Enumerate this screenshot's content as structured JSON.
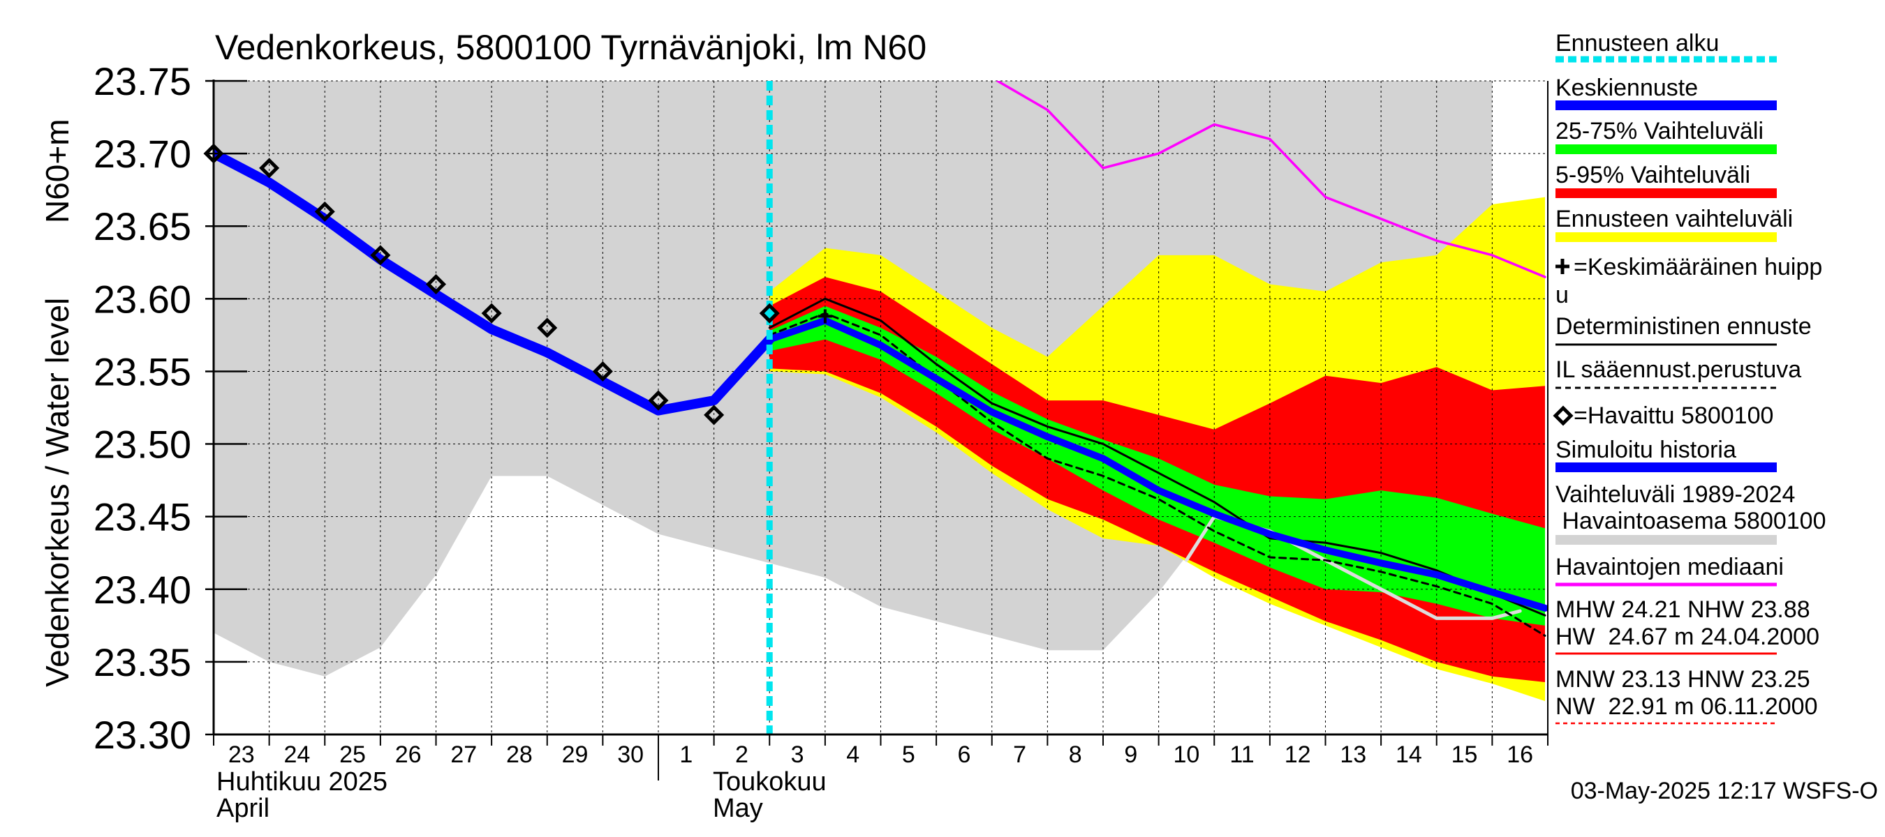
{
  "chart_data": {
    "type": "line",
    "title": "Vedenkorkeus, 5800100 Tyrnävänjoki, lm N60",
    "ylabel_top": "N60+m",
    "ylabel": "Vedenkorkeus / Water level",
    "ylim": [
      23.3,
      23.75
    ],
    "yticks": [
      "23.30",
      "23.35",
      "23.40",
      "23.45",
      "23.50",
      "23.55",
      "23.60",
      "23.65",
      "23.70",
      "23.75"
    ],
    "xlim": [
      "2025-04-23",
      "2025-05-16"
    ],
    "x_day_labels": [
      "23",
      "24",
      "25",
      "26",
      "27",
      "28",
      "29",
      "30",
      "1",
      "2",
      "3",
      "4",
      "5",
      "6",
      "7",
      "8",
      "9",
      "10",
      "11",
      "12",
      "13",
      "14",
      "15",
      "16"
    ],
    "month_labels": {
      "april": {
        "fi": "Huhtikuu  2025",
        "en": "April"
      },
      "may": {
        "fi": "Toukokuu",
        "en": "May"
      }
    },
    "grid": true,
    "legend_position": "right",
    "forecast_start": "2025-05-03",
    "series": {
      "history_range": {
        "name": "Vaihteluväli 1989-2024 Havaintoasema 5800100",
        "color": "#d3d3d3",
        "x": [
          "2025-04-23",
          "2025-04-24",
          "2025-04-25",
          "2025-04-26",
          "2025-04-27",
          "2025-04-28",
          "2025-04-29",
          "2025-04-30",
          "2025-05-01",
          "2025-05-02",
          "2025-05-03",
          "2025-05-04",
          "2025-05-05",
          "2025-05-06",
          "2025-05-07",
          "2025-05-08",
          "2025-05-09",
          "2025-05-10",
          "2025-05-11",
          "2025-05-12",
          "2025-05-13",
          "2025-05-14",
          "2025-05-15",
          "2025-05-16"
        ],
        "upper": [
          23.75,
          23.75,
          23.75,
          23.75,
          23.75,
          23.75,
          23.75,
          23.75,
          23.75,
          23.75,
          23.75,
          23.75,
          23.75,
          23.75,
          23.75,
          23.75,
          23.75,
          23.75,
          23.75,
          23.75,
          23.75,
          23.75,
          23.75,
          23.75
        ],
        "lower": [
          23.37,
          23.35,
          23.34,
          23.36,
          23.41,
          23.478,
          23.478,
          23.458,
          23.438,
          23.428,
          23.418,
          23.408,
          23.388,
          23.378,
          23.368,
          23.358,
          23.358,
          23.398,
          23.448,
          23.448,
          23.438,
          23.428,
          23.418,
          23.408
        ]
      },
      "forecast_range": {
        "name": "Ennusteen vaihteluväli",
        "color": "#ffff00",
        "x": [
          "2025-05-03",
          "2025-05-04",
          "2025-05-05",
          "2025-05-06",
          "2025-05-07",
          "2025-05-08",
          "2025-05-09",
          "2025-05-10",
          "2025-05-11",
          "2025-05-12",
          "2025-05-13",
          "2025-05-14",
          "2025-05-15",
          "2025-05-16",
          "2025-05-16.95"
        ],
        "upper": [
          23.605,
          23.635,
          23.63,
          23.605,
          23.58,
          23.56,
          23.595,
          23.63,
          23.63,
          23.61,
          23.605,
          23.625,
          23.63,
          23.665,
          23.67
        ],
        "lower": [
          23.55,
          23.548,
          23.532,
          23.508,
          23.48,
          23.455,
          23.435,
          23.43,
          23.408,
          23.39,
          23.375,
          23.36,
          23.345,
          23.335,
          23.323
        ]
      },
      "range_5_95": {
        "name": "5-95% Vaihteluväli",
        "color": "#ff0000",
        "x": [
          "2025-05-03",
          "2025-05-04",
          "2025-05-05",
          "2025-05-06",
          "2025-05-07",
          "2025-05-08",
          "2025-05-09",
          "2025-05-10",
          "2025-05-11",
          "2025-05-12",
          "2025-05-13",
          "2025-05-14",
          "2025-05-15",
          "2025-05-16",
          "2025-05-16.95"
        ],
        "upper": [
          23.595,
          23.615,
          23.605,
          23.58,
          23.555,
          23.53,
          23.53,
          23.52,
          23.51,
          23.528,
          23.547,
          23.542,
          23.553,
          23.537,
          23.54
        ],
        "lower": [
          23.552,
          23.55,
          23.535,
          23.512,
          23.485,
          23.462,
          23.448,
          23.43,
          23.412,
          23.395,
          23.378,
          23.365,
          23.35,
          23.34,
          23.336
        ]
      },
      "range_25_75": {
        "name": "25-75% Vaihteluväli",
        "color": "#00ff00",
        "x": [
          "2025-05-03",
          "2025-05-04",
          "2025-05-05",
          "2025-05-06",
          "2025-05-07",
          "2025-05-08",
          "2025-05-09",
          "2025-05-10",
          "2025-05-11",
          "2025-05-12",
          "2025-05-13",
          "2025-05-14",
          "2025-05-15",
          "2025-05-16",
          "2025-05-16.95"
        ],
        "upper": [
          23.578,
          23.595,
          23.58,
          23.56,
          23.536,
          23.517,
          23.503,
          23.49,
          23.472,
          23.464,
          23.462,
          23.468,
          23.463,
          23.452,
          23.442
        ],
        "lower": [
          23.564,
          23.572,
          23.558,
          23.535,
          23.51,
          23.49,
          23.468,
          23.448,
          23.432,
          23.415,
          23.4,
          23.398,
          23.39,
          23.38,
          23.375
        ]
      },
      "median_forecast": {
        "name": "Keskiennuste",
        "color": "#0000ff",
        "x": [
          "2025-05-03",
          "2025-05-04",
          "2025-05-05",
          "2025-05-06",
          "2025-05-07",
          "2025-05-08",
          "2025-05-09",
          "2025-05-10",
          "2025-05-11",
          "2025-05-12",
          "2025-05-13",
          "2025-05-14",
          "2025-05-15",
          "2025-05-16",
          "2025-05-16.95"
        ],
        "values": [
          23.572,
          23.585,
          23.568,
          23.545,
          23.522,
          23.505,
          23.49,
          23.468,
          23.452,
          23.438,
          23.427,
          23.418,
          23.41,
          23.398,
          23.387
        ]
      },
      "deterministic": {
        "name": "Deterministinen ennuste",
        "color": "#000000",
        "x": [
          "2025-05-03",
          "2025-05-04",
          "2025-05-05",
          "2025-05-06",
          "2025-05-07",
          "2025-05-08",
          "2025-05-09",
          "2025-05-10",
          "2025-05-11",
          "2025-05-12",
          "2025-05-13",
          "2025-05-14",
          "2025-05-15",
          "2025-05-16",
          "2025-05-16.95"
        ],
        "values": [
          23.58,
          23.6,
          23.585,
          23.555,
          23.528,
          23.512,
          23.5,
          23.48,
          23.46,
          23.435,
          23.432,
          23.425,
          23.413,
          23.397,
          23.382
        ]
      },
      "il_weather_forecast": {
        "name": "IL sääennust.perustuva",
        "color": "#000000",
        "dash": true,
        "x": [
          "2025-05-03",
          "2025-05-04",
          "2025-05-05",
          "2025-05-06",
          "2025-05-07",
          "2025-05-08",
          "2025-05-09",
          "2025-05-10",
          "2025-05-11",
          "2025-05-12",
          "2025-05-13",
          "2025-05-14",
          "2025-05-15",
          "2025-05-16",
          "2025-05-16.95"
        ],
        "values": [
          23.575,
          23.59,
          23.575,
          23.545,
          23.515,
          23.49,
          23.478,
          23.462,
          23.44,
          23.422,
          23.42,
          23.412,
          23.402,
          23.39,
          23.368
        ]
      },
      "simulated_history": {
        "name": "Simuloitu historia",
        "color": "#0000ff",
        "x": [
          "2025-04-23",
          "2025-04-24",
          "2025-04-25",
          "2025-04-26",
          "2025-04-27",
          "2025-04-28",
          "2025-04-29",
          "2025-04-30",
          "2025-05-01",
          "2025-05-02",
          "2025-05-03"
        ],
        "values": [
          23.7,
          23.68,
          23.655,
          23.627,
          23.603,
          23.579,
          23.563,
          23.543,
          23.523,
          23.53,
          23.572
        ]
      },
      "observed": {
        "name": "=Havaittu 5800100",
        "marker": "diamond",
        "x": [
          "2025-04-23",
          "2025-04-24",
          "2025-04-25",
          "2025-04-26",
          "2025-04-27",
          "2025-04-28",
          "2025-04-29",
          "2025-04-30",
          "2025-05-01",
          "2025-05-02",
          "2025-05-03"
        ],
        "values": [
          23.7,
          23.69,
          23.66,
          23.63,
          23.61,
          23.59,
          23.58,
          23.55,
          23.53,
          23.52,
          23.59
        ]
      },
      "mean_peak": {
        "name": "=Keskimääräinen huippu",
        "marker": "plus",
        "x": [
          "2025-05-04"
        ],
        "values": [
          23.588
        ]
      },
      "observation_median": {
        "name": "Havaintojen mediaani",
        "color": "#ff00ff",
        "x": [
          "2025-05-07.1",
          "2025-05-08",
          "2025-05-09",
          "2025-05-10",
          "2025-05-11",
          "2025-05-12",
          "2025-05-13",
          "2025-05-14",
          "2025-05-15",
          "2025-05-16",
          "2025-05-16.95"
        ],
        "values": [
          23.75,
          23.73,
          23.69,
          23.7,
          23.72,
          23.71,
          23.67,
          23.655,
          23.64,
          23.63,
          23.615
        ]
      },
      "observation_median_light": {
        "name": "",
        "color": "#dddddd",
        "x": [
          "2025-05-10.5",
          "2025-05-11",
          "2025-05-12",
          "2025-05-13",
          "2025-05-14",
          "2025-05-15",
          "2025-05-16",
          "2025-05-16.5"
        ],
        "values": [
          23.42,
          23.45,
          23.44,
          23.42,
          23.4,
          23.38,
          23.38,
          23.385
        ]
      }
    },
    "legend": [
      {
        "key": "forecast_start",
        "label": "Ennusteen alku",
        "color": "#00e5ee",
        "style": "dotted-thick"
      },
      {
        "key": "median_forecast",
        "label": "Keskiennuste",
        "color": "#0000ff",
        "style": "thick"
      },
      {
        "key": "range_25_75",
        "label": "25-75% Vaihteluväli",
        "color": "#00ff00",
        "style": "thick"
      },
      {
        "key": "range_5_95",
        "label": "5-95% Vaihteluväli",
        "color": "#ff0000",
        "style": "thick"
      },
      {
        "key": "forecast_range",
        "label": "Ennusteen vaihteluväli",
        "color": "#ffff00",
        "style": "thick"
      },
      {
        "key": "mean_peak",
        "label": "=Keskimääräinen huipp",
        "label2": "u",
        "color": "#000000",
        "style": "none"
      },
      {
        "key": "deterministic",
        "label": "Deterministinen ennuste",
        "color": "#000000",
        "style": "thin"
      },
      {
        "key": "il_weather_forecast",
        "label": "IL sääennust.perustuva",
        "color": "#000000",
        "style": "dashed"
      },
      {
        "key": "observed",
        "label": "=Havaittu 5800100",
        "color": "#000000",
        "style": "none"
      },
      {
        "key": "simulated_history",
        "label": "Simuloitu historia",
        "color": "#0000ff",
        "style": "thick"
      },
      {
        "key": "history_range",
        "label": "Vaihteluväli 1989-2024",
        "label2": " Havaintoasema 5800100",
        "color": "#d3d3d3",
        "style": "thick"
      },
      {
        "key": "observation_median",
        "label": "Havaintojen mediaani",
        "color": "#ff00ff",
        "style": "medium"
      },
      {
        "key": "mhw",
        "label": "MHW  24.21 NHW  23.88",
        "label2": "HW  24.67 m 24.04.2000",
        "color": "#ff0000",
        "style": "thin"
      },
      {
        "key": "mnw",
        "label": "MNW  23.13 HNW  23.25",
        "label2": "NW  22.91 m 06.11.2000",
        "color": "#ff0000",
        "style": "dashed-thin"
      }
    ],
    "footer": "03-May-2025 12:17 WSFS-O"
  }
}
